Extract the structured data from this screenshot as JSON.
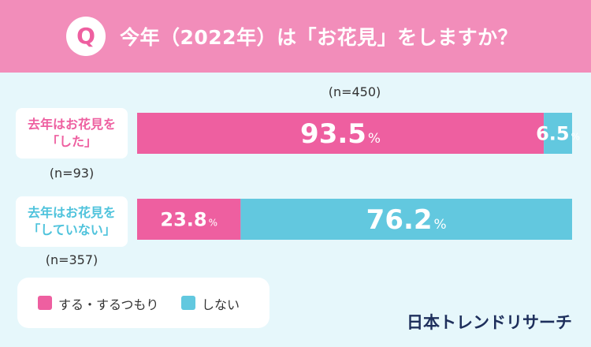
{
  "header": {
    "badge": "Q",
    "question": "今年（2022年）は「お花見」をしますか？"
  },
  "colors": {
    "header_bg": "#f28dba",
    "do": "#ee5fa0",
    "dont": "#62c8df",
    "background": "#e6f7fb"
  },
  "chart_data": {
    "type": "bar",
    "orientation": "horizontal",
    "stacked": true,
    "total_n_label": "(n=450)",
    "categories": [
      {
        "label_lines": [
          "去年はお花見を",
          "「した」"
        ],
        "n_label": "(n=93)"
      },
      {
        "label_lines": [
          "去年はお花見を",
          "「していない」"
        ],
        "n_label": "(n=357)"
      }
    ],
    "series": [
      {
        "name": "する・するつもり",
        "values": [
          93.5,
          23.8
        ],
        "color": "#ee5fa0"
      },
      {
        "name": "しない",
        "values": [
          6.5,
          76.2
        ],
        "color": "#62c8df"
      }
    ],
    "unit": "%",
    "xlim": [
      0,
      100
    ],
    "legend_position": "bottom-left",
    "grid": false
  },
  "brand": "日本トレンドリサーチ"
}
